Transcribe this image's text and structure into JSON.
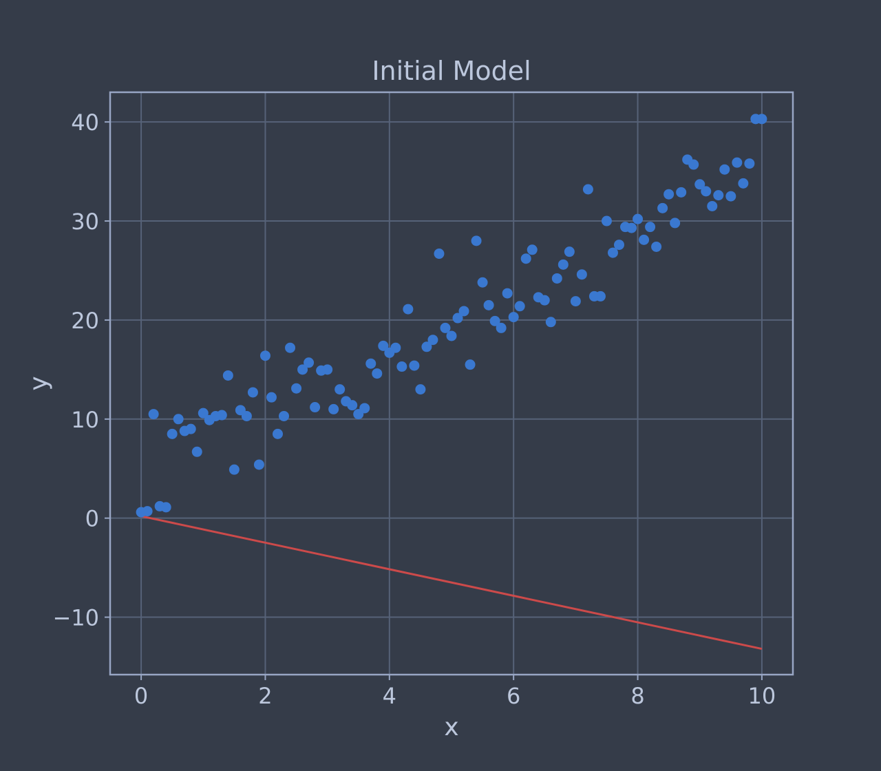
{
  "colors": {
    "background": "#353c49",
    "grid": "#566278",
    "frame": "#98a6c4",
    "text": "#bcc7dc",
    "points": "#3a78d0",
    "line": "#cc4a4a"
  },
  "chart_data": {
    "type": "scatter",
    "title": "Initial Model",
    "xlabel": "x",
    "ylabel": "y",
    "xlim": [
      -0.5,
      10.5
    ],
    "ylim": [
      -15.8,
      43
    ],
    "grid": true,
    "x_ticks": [
      0,
      2,
      4,
      6,
      8,
      10
    ],
    "y_ticks": [
      -10,
      0,
      10,
      20,
      30,
      40
    ],
    "x_tick_labels": [
      "0",
      "2",
      "4",
      "6",
      "8",
      "10"
    ],
    "y_tick_labels": [
      "−10",
      "0",
      "10",
      "20",
      "30",
      "40"
    ],
    "series": [
      {
        "kind": "scatter",
        "x": [
          0.0,
          0.1,
          0.2,
          0.3,
          0.4,
          0.5,
          0.6,
          0.7,
          0.8,
          0.9,
          1.0,
          1.1,
          1.2,
          1.3,
          1.4,
          1.5,
          1.6,
          1.7,
          1.8,
          1.9,
          2.0,
          2.1,
          2.2,
          2.3,
          2.4,
          2.5,
          2.6,
          2.7,
          2.8,
          2.9,
          3.0,
          3.1,
          3.2,
          3.3,
          3.4,
          3.5,
          3.6,
          3.7,
          3.8,
          3.9,
          4.0,
          4.1,
          4.2,
          4.3,
          4.4,
          4.5,
          4.6,
          4.7,
          4.8,
          4.9,
          5.0,
          5.1,
          5.2,
          5.3,
          5.4,
          5.5,
          5.6,
          5.7,
          5.8,
          5.9,
          6.0,
          6.1,
          6.2,
          6.3,
          6.4,
          6.5,
          6.6,
          6.7,
          6.8,
          6.9,
          7.0,
          7.1,
          7.2,
          7.3,
          7.4,
          7.5,
          7.6,
          7.7,
          7.8,
          7.9,
          8.0,
          8.1,
          8.2,
          8.3,
          8.4,
          8.5,
          8.6,
          8.7,
          8.8,
          8.9,
          9.0,
          9.1,
          9.2,
          9.3,
          9.4,
          9.5,
          9.6,
          9.7,
          9.8,
          9.9,
          10.0
        ],
        "y": [
          0.6,
          0.7,
          10.5,
          1.2,
          1.1,
          8.5,
          10.0,
          8.8,
          9.0,
          6.7,
          10.6,
          9.9,
          10.3,
          10.4,
          14.4,
          4.9,
          10.9,
          10.3,
          12.7,
          5.4,
          16.4,
          12.2,
          8.5,
          10.3,
          17.2,
          13.1,
          15.0,
          15.7,
          11.2,
          14.9,
          15.0,
          11.0,
          13.0,
          11.8,
          11.4,
          10.5,
          11.1,
          15.6,
          14.6,
          17.4,
          16.7,
          17.2,
          15.3,
          21.1,
          15.4,
          13.0,
          17.3,
          18.0,
          26.7,
          19.2,
          18.4,
          20.2,
          20.9,
          15.5,
          28.0,
          23.8,
          21.5,
          19.9,
          19.2,
          22.7,
          20.3,
          21.4,
          26.2,
          27.1,
          22.3,
          22.0,
          19.8,
          24.2,
          25.6,
          26.9,
          21.9,
          24.6,
          33.2,
          22.4,
          22.4,
          30.0,
          26.8,
          27.6,
          29.4,
          29.3,
          30.2,
          28.1,
          29.4,
          27.4,
          31.3,
          32.7,
          29.8,
          32.9,
          36.2,
          35.7,
          33.7,
          33.0,
          31.5,
          32.6,
          35.2,
          32.5,
          35.9,
          33.8,
          35.8,
          40.3,
          40.3
        ]
      },
      {
        "kind": "line",
        "x": [
          0,
          10
        ],
        "y": [
          0.2,
          -13.2
        ]
      }
    ]
  }
}
